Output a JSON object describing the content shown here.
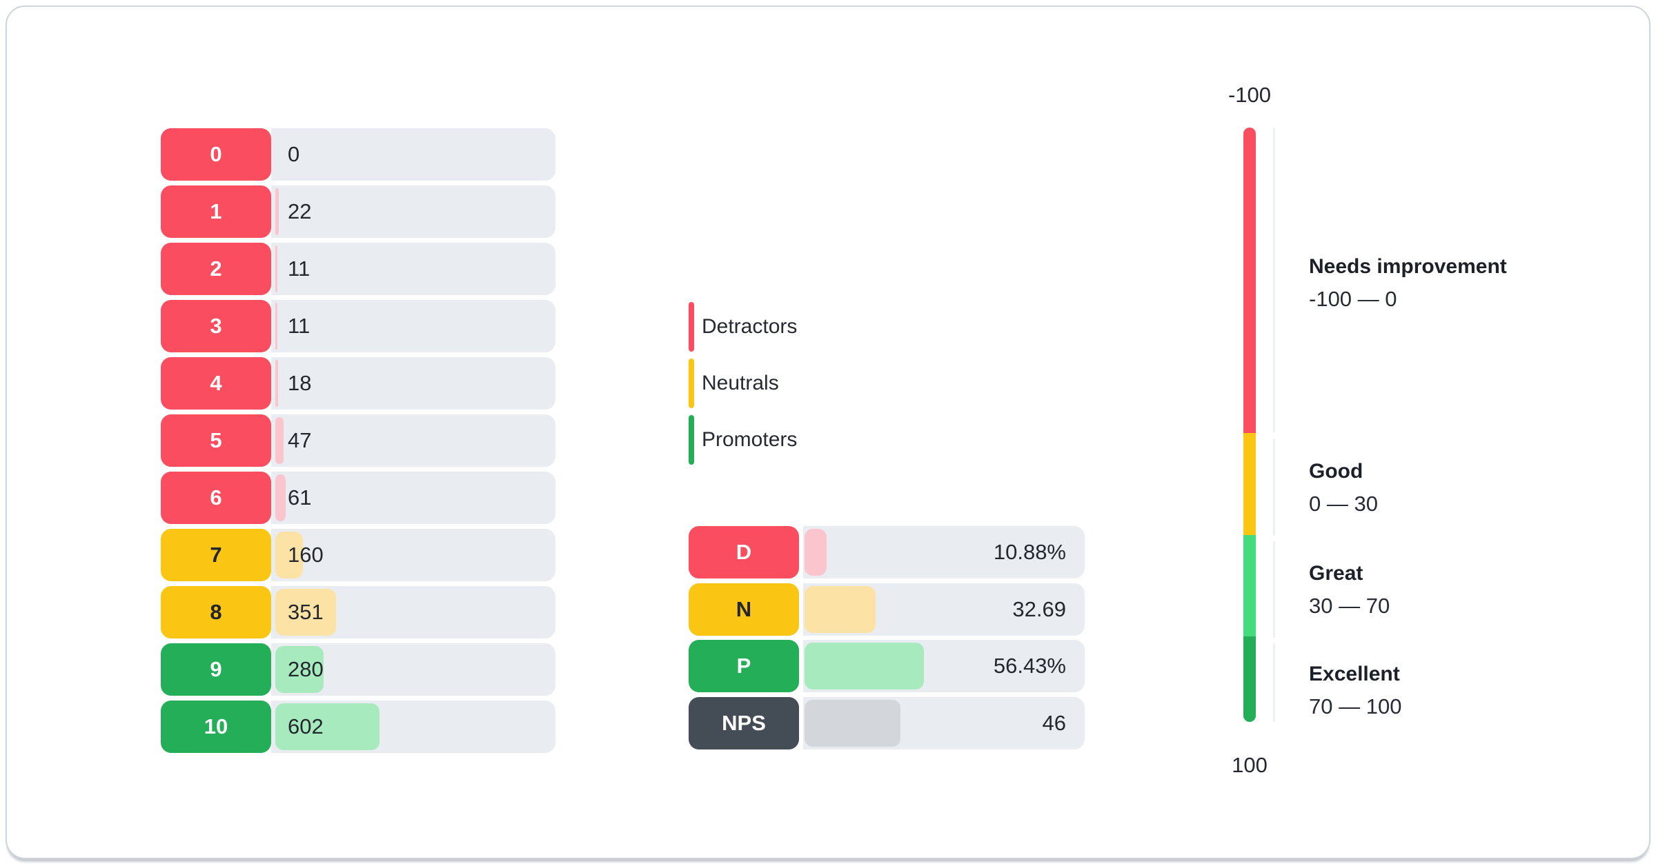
{
  "chart_data": [
    {
      "type": "bar",
      "title": "NPS score distribution",
      "orientation": "horizontal",
      "categories": [
        "0",
        "1",
        "2",
        "3",
        "4",
        "5",
        "6",
        "7",
        "8",
        "9",
        "10"
      ],
      "values": [
        0,
        22,
        11,
        11,
        18,
        47,
        61,
        160,
        351,
        280,
        602
      ],
      "groups": {
        "detractors": "scores 0-6",
        "neutrals": "scores 7-8",
        "promoters": "scores 9-10"
      },
      "legend_entries": [
        "Detractors",
        "Neutrals",
        "Promoters"
      ],
      "grid": false
    },
    {
      "type": "bar",
      "title": "NPS summary",
      "orientation": "horizontal",
      "categories": [
        "D",
        "N",
        "P",
        "NPS"
      ],
      "values": [
        10.88,
        32.69,
        56.43,
        46
      ],
      "value_labels": [
        "10.88%",
        "32.69",
        "56.43%",
        "46"
      ]
    },
    {
      "type": "gauge",
      "title": "NPS scale",
      "axis_range": [
        -100,
        100
      ],
      "tick_labels": [
        "-100",
        "100"
      ],
      "zones": [
        {
          "label": "Needs improvement",
          "range": [
            -100,
            0
          ]
        },
        {
          "label": "Good",
          "range": [
            0,
            30
          ]
        },
        {
          "label": "Great",
          "range": [
            30,
            70
          ]
        },
        {
          "label": "Excellent",
          "range": [
            70,
            100
          ]
        }
      ]
    }
  ],
  "colors": {
    "detractor": "#FA4D60",
    "detractor_light": "#FAC5CD",
    "neutral": "#FBC513",
    "neutral_light": "#FCE3A5",
    "promoter": "#24AE58",
    "promoter_bright": "#43DC7D",
    "nps_dark": "#444C56",
    "nps_fill": "#D3D6DA",
    "track": "#E9ECF1"
  },
  "score_chart": {
    "rows": [
      {
        "score": "0",
        "count": "0",
        "category": "detractor",
        "btn": "#FA4D60",
        "txt": "#FFFFFF",
        "fill": "#FAC5CD",
        "fill_width": "0%"
      },
      {
        "score": "1",
        "count": "22",
        "category": "detractor",
        "btn": "#FA4D60",
        "txt": "#FFFFFF",
        "fill": "#FAC5CD",
        "fill_width": "1.33%"
      },
      {
        "score": "2",
        "count": "11",
        "category": "detractor",
        "btn": "#FA4D60",
        "txt": "#FFFFFF",
        "fill": "#FAC5CD",
        "fill_width": "0.68%"
      },
      {
        "score": "3",
        "count": "11",
        "category": "detractor",
        "btn": "#FA4D60",
        "txt": "#FFFFFF",
        "fill": "#FAC5CD",
        "fill_width": "0.68%"
      },
      {
        "score": "4",
        "count": "18",
        "category": "detractor",
        "btn": "#FA4D60",
        "txt": "#FFFFFF",
        "fill": "#FAC5CD",
        "fill_width": "1.09%"
      },
      {
        "score": "5",
        "count": "47",
        "category": "detractor",
        "btn": "#FA4D60",
        "txt": "#FFFFFF",
        "fill": "#FAC5CD",
        "fill_width": "2.86%"
      },
      {
        "score": "6",
        "count": "61",
        "category": "detractor",
        "btn": "#FA4D60",
        "txt": "#FFFFFF",
        "fill": "#FAC5CD",
        "fill_width": "3.71%"
      },
      {
        "score": "7",
        "count": "160",
        "category": "neutral",
        "btn": "#FBC513",
        "txt": "#23262C",
        "fill": "#FCE3A5",
        "fill_width": "9.71%"
      },
      {
        "score": "8",
        "count": "351",
        "category": "neutral",
        "btn": "#FBC513",
        "txt": "#23262C",
        "fill": "#FCE3A5",
        "fill_width": "21.4%"
      },
      {
        "score": "9",
        "count": "280",
        "category": "promoter",
        "btn": "#24AE58",
        "txt": "#FFFFFF",
        "fill": "#A7EABE",
        "fill_width": "17.0%"
      },
      {
        "score": "10",
        "count": "602",
        "category": "promoter",
        "btn": "#24AE58",
        "txt": "#FFFFFF",
        "fill": "#A7EABE",
        "fill_width": "36.7%"
      }
    ]
  },
  "legend": {
    "items": [
      {
        "label": "Detractors",
        "color": "#FA4D60"
      },
      {
        "label": "Neutrals",
        "color": "#FBC513"
      },
      {
        "label": "Promoters",
        "color": "#24AE58"
      }
    ]
  },
  "summary": {
    "rows": [
      {
        "label": "D",
        "value": "10.88%",
        "btn": "#FA4D60",
        "txt": "#FFFFFF",
        "fill": "#FAC5CD",
        "fill_width": "7.8%"
      },
      {
        "label": "N",
        "value": "32.69",
        "btn": "#FBC513",
        "txt": "#23262C",
        "fill": "#FCE3A5",
        "fill_width": "25.2%"
      },
      {
        "label": "P",
        "value": "56.43%",
        "btn": "#24AE58",
        "txt": "#FFFFFF",
        "fill": "#A7EABE",
        "fill_width": "42.5%"
      },
      {
        "label": "NPS",
        "value": "46",
        "btn": "#444C56",
        "txt": "#FFFFFF",
        "fill": "#D3D6DA",
        "fill_width": "34.0%"
      }
    ]
  },
  "gauge": {
    "top_label": "-100",
    "bottom_label": "100",
    "zones": [
      {
        "name": "Needs improvement",
        "range": "-100 — 0",
        "color": "#FA4D60",
        "height": "51.4%"
      },
      {
        "name": "Good",
        "range": "0 — 30",
        "color": "#FBC513",
        "height": "17.2%"
      },
      {
        "name": "Great",
        "range": "30 — 70",
        "color": "#43DC7D",
        "height": "17.0%"
      },
      {
        "name": "Excellent",
        "range": "70 — 100",
        "color": "#24AE58",
        "height": "14.4%"
      }
    ]
  }
}
